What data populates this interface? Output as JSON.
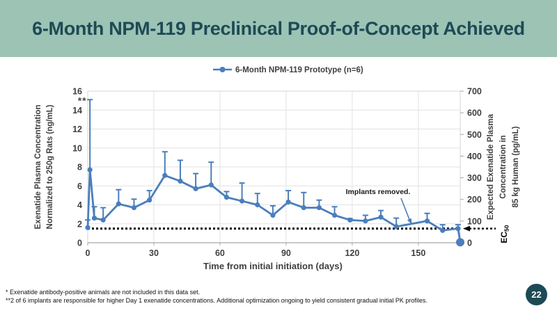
{
  "slide": {
    "title": "6-Month NPM-119 Preclinical Proof-of-Concept Achieved",
    "page_number": "22",
    "footnotes": [
      "*  Exenatide antibody-positive animals are not included in this data set.",
      "**2 of 6 implants are responsible for higher Day 1 exenatide concentrations.  Additional optimization ongoing to yield consistent gradual initial PK profiles."
    ],
    "colors": {
      "header_bg": "#9cc3b4",
      "title_text": "#1d4a55",
      "series_blue": "#4a7ebc",
      "grid": "#e2e2e2",
      "plot_border": "#d4d4d4",
      "axis_line": "#a6a6a6",
      "label_text": "#404040",
      "annotation_text": "#1a1a1a",
      "badge_bg": "#1d4a55"
    }
  },
  "chart_data": {
    "type": "line",
    "legend": [
      "6-Month NPM-119 Prototype (n=6)"
    ],
    "xlabel": "Time from initial initiation (days)",
    "ylabel_left_lines": [
      "Exenatide Plasma Concentration",
      "Normalized to 250g Rats (ng/mL)"
    ],
    "ylabel_right_lines": [
      "Expected Exenatide Plasma",
      "Concentration in",
      "85 kg Human (pg/mL)"
    ],
    "xlim": [
      0,
      169
    ],
    "ylim_left": [
      0,
      16
    ],
    "ylim_right": [
      0,
      700
    ],
    "xticks": [
      0,
      30,
      60,
      90,
      120,
      150
    ],
    "yticks_left": [
      0,
      2,
      4,
      6,
      8,
      10,
      12,
      14,
      16
    ],
    "yticks_right": [
      0,
      100,
      200,
      300,
      400,
      500,
      600,
      700
    ],
    "grid": true,
    "legend_position": "top-center",
    "series": [
      {
        "name": "6-Month NPM-119 Prototype (n=6)",
        "units_left_axis": "ng/mL",
        "points": [
          {
            "day": 0,
            "value": 1.6,
            "err_up": 0.8
          },
          {
            "day": 1,
            "value": 7.7,
            "err_up": 7.4
          },
          {
            "day": 3,
            "value": 2.6,
            "err_up": 1.2
          },
          {
            "day": 7,
            "value": 2.4,
            "err_up": 1.3
          },
          {
            "day": 14,
            "value": 4.1,
            "err_up": 1.5
          },
          {
            "day": 21,
            "value": 3.7,
            "err_up": 0.9
          },
          {
            "day": 28,
            "value": 4.5,
            "err_up": 1.0
          },
          {
            "day": 35,
            "value": 7.1,
            "err_up": 2.5
          },
          {
            "day": 42,
            "value": 6.5,
            "err_up": 2.2
          },
          {
            "day": 49,
            "value": 5.7,
            "err_up": 1.6
          },
          {
            "day": 56,
            "value": 6.1,
            "err_up": 2.4
          },
          {
            "day": 63,
            "value": 4.8,
            "err_up": 0.6
          },
          {
            "day": 70,
            "value": 4.4,
            "err_up": 1.9
          },
          {
            "day": 77,
            "value": 4.0,
            "err_up": 1.2
          },
          {
            "day": 84,
            "value": 2.9,
            "err_up": 1.0
          },
          {
            "day": 91,
            "value": 4.3,
            "err_up": 1.2
          },
          {
            "day": 98,
            "value": 3.7,
            "err_up": 1.6
          },
          {
            "day": 105,
            "value": 3.7,
            "err_up": 0.8
          },
          {
            "day": 112,
            "value": 2.9,
            "err_up": 0.9
          },
          {
            "day": 119,
            "value": 2.4,
            "err_up": 0.15
          },
          {
            "day": 126,
            "value": 2.3,
            "err_up": 0.6
          },
          {
            "day": 133,
            "value": 2.7,
            "err_up": 0.7
          },
          {
            "day": 140,
            "value": 1.7,
            "err_up": 0.9
          },
          {
            "day": 154,
            "value": 2.3,
            "err_up": 0.8
          },
          {
            "day": 161,
            "value": 1.3,
            "err_up": 0.6
          },
          {
            "day": 168,
            "value": 1.5,
            "err_up": 0.4
          },
          {
            "day": 169,
            "value": 0.05,
            "err_up": 0,
            "big_marker": true
          }
        ]
      }
    ],
    "reference_line": {
      "value_left_axis": 1.5,
      "label": "EC",
      "label_sub": "50",
      "style": "dotted-black-arrow"
    },
    "annotations": [
      {
        "id": "implants_removed",
        "text": "Implants removed.",
        "points_to_day": 147
      },
      {
        "id": "double_asterisk",
        "text": "**",
        "at_day": 1,
        "at_value": 15.3
      }
    ]
  }
}
